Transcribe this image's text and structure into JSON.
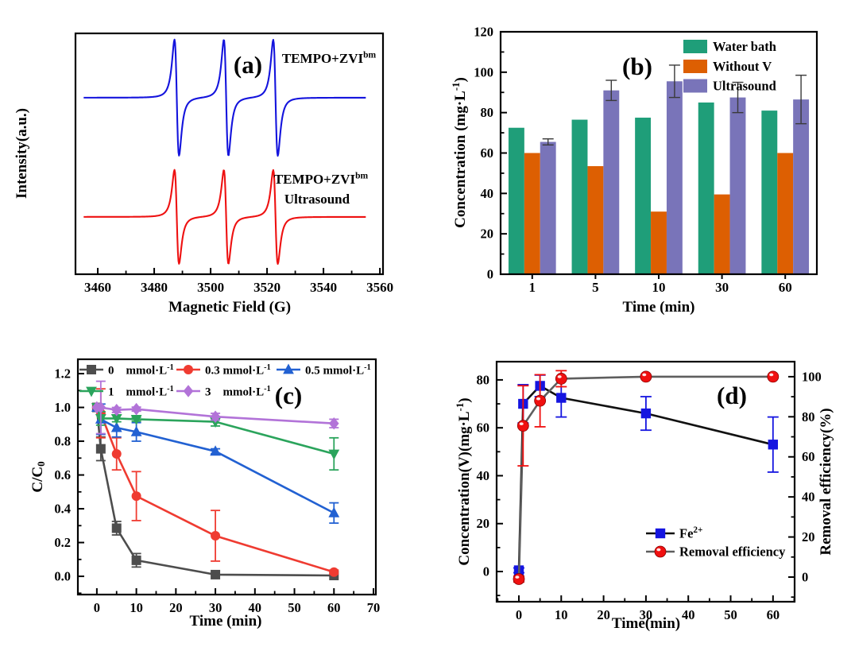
{
  "figure": {
    "background": "#ffffff",
    "panel_labels": [
      "(a)",
      "(b)",
      "(c)",
      "(d)"
    ]
  },
  "chart_data": [
    {
      "panel": "(a)",
      "type": "line",
      "subtype": "epr_spectra",
      "xlabel": "Magnetic Field (G)",
      "ylabel": "Intensity(a.u.)",
      "x_ticks": [
        "3460",
        "3480",
        "3500",
        "3520",
        "3540",
        "3560"
      ],
      "x_tick_values": [
        3460,
        3480,
        3500,
        3520,
        3540,
        3560
      ],
      "x_minor_step": 10,
      "xlim": [
        3452.1,
        3561.1
      ],
      "grid": false,
      "annotations": [
        "TEMPO+ZVI^{bm}",
        "TEMPO+ZVI^{bm}",
        "Ultrasound"
      ],
      "series": [
        {
          "name": "TEMPO+ZVI^{bm}",
          "color": "#1414dd",
          "baseline": 0.733,
          "amplitude": 0.241,
          "peak_centers_G": [
            3488,
            3505.5,
            3523
          ],
          "linewidth_G": 1.4,
          "x_start": 3455,
          "x_end": 3555
        },
        {
          "name": "TEMPO+ZVI^{bm} Ultrasound",
          "color": "#ee1111",
          "baseline": 0.238,
          "amplitude": 0.195,
          "peak_centers_G": [
            3488,
            3505.5,
            3523
          ],
          "linewidth_G": 1.4,
          "x_start": 3455,
          "x_end": 3555
        }
      ]
    },
    {
      "panel": "(b)",
      "type": "bar",
      "xlabel": "Time (min)",
      "ylabel": "Concentration (mg·L^{-1})",
      "categories": [
        "1",
        "5",
        "10",
        "30",
        "60"
      ],
      "y_ticks": [
        "0",
        "20",
        "40",
        "60",
        "80",
        "100",
        "120"
      ],
      "y_tick_values": [
        0,
        20,
        40,
        60,
        80,
        100,
        120
      ],
      "y_minor_step": 10,
      "ylim": [
        0,
        120
      ],
      "legend_position": "top-right-inside",
      "error_bar_color": "#3a3a3a",
      "series": [
        {
          "name": "Water bath",
          "color": "#1f9e79",
          "values": [
            72.5,
            76.5,
            77.5,
            85,
            81
          ]
        },
        {
          "name": "Without V",
          "color": "#dd5f02",
          "values": [
            60,
            53.5,
            31,
            39.5,
            60
          ]
        },
        {
          "name": "Ultrasound",
          "color": "#7974b9",
          "values": [
            65.5,
            91,
            95.5,
            87.5,
            86.5
          ],
          "errors": [
            1.5,
            5,
            8,
            7.5,
            12
          ]
        }
      ]
    },
    {
      "panel": "(c)",
      "type": "line",
      "xlabel": "Time (min)",
      "ylabel": "C/C_{0}",
      "x": [
        0,
        1,
        5,
        10,
        30,
        60
      ],
      "x_ticks": [
        "0",
        "10",
        "20",
        "30",
        "40",
        "50",
        "60",
        "70"
      ],
      "x_tick_values": [
        0,
        10,
        20,
        30,
        40,
        50,
        60,
        70
      ],
      "x_minor_step": 5,
      "y_ticks": [
        "0.0",
        "0.2",
        "0.4",
        "0.6",
        "0.8",
        "1.0",
        "1.2"
      ],
      "y_tick_values": [
        0,
        0.2,
        0.4,
        0.6,
        0.8,
        1.0,
        1.2
      ],
      "y_minor_step": 0.1,
      "xlim": [
        -4.8,
        70.6
      ],
      "ylim": [
        -0.108,
        1.285
      ],
      "legend_position": "top-inside-two-rows",
      "series": [
        {
          "name": "0  mmol·L^{-1}",
          "marker": "square",
          "color": "#4d4d4d",
          "values": [
            1.0,
            0.755,
            0.285,
            0.095,
            0.01,
            0.005
          ],
          "errors": [
            0,
            0.07,
            0.04,
            0.04,
            0,
            0
          ]
        },
        {
          "name": "0.3 mmol·L^{-1}",
          "marker": "circle",
          "color": "#ef3b31",
          "values": [
            1.0,
            0.965,
            0.725,
            0.475,
            0.24,
            0.025
          ],
          "errors": [
            0,
            0.145,
            0.095,
            0.145,
            0.15,
            0.012
          ]
        },
        {
          "name": "0.5 mmol·L^{-1}",
          "marker": "tri-up",
          "color": "#2261d2",
          "values": [
            1.0,
            0.93,
            0.88,
            0.855,
            0.74,
            0.375
          ],
          "errors": [
            0,
            0.09,
            0.055,
            0.055,
            0.015,
            0.06
          ]
        },
        {
          "name": "1  mmol·L^{-1}",
          "marker": "tri-down",
          "color": "#2ba45c",
          "values": [
            1.0,
            0.935,
            0.935,
            0.93,
            0.915,
            0.725
          ],
          "errors": [
            0,
            0.04,
            0.02,
            0.012,
            0.025,
            0.095
          ]
        },
        {
          "name": "3  mmol·L^{-1}",
          "marker": "diamond",
          "color": "#b273d8",
          "values": [
            1.0,
            1.0,
            0.985,
            0.99,
            0.945,
            0.905
          ],
          "errors": [
            0,
            0.155,
            0.015,
            0.012,
            0.02,
            0.025
          ]
        }
      ]
    },
    {
      "panel": "(d)",
      "type": "line-dual-axis",
      "xlabel": "Time(min)",
      "ylabel_left": "Concentration(V)(mg·L^{-1})",
      "ylabel_right": "Removal efficiency(%)",
      "x": [
        0,
        1,
        5,
        10,
        30,
        60
      ],
      "x_ticks": [
        "0",
        "10",
        "20",
        "30",
        "40",
        "50",
        "60"
      ],
      "x_tick_values": [
        0,
        10,
        20,
        30,
        40,
        50,
        60
      ],
      "x_minor_step": 5,
      "y_ticks_left": [
        "0",
        "20",
        "40",
        "60",
        "80"
      ],
      "y_tick_values_left": [
        0,
        20,
        40,
        60,
        80
      ],
      "y_minor_step_left": 10,
      "y_ticks_right": [
        "0",
        "20",
        "40",
        "60",
        "80",
        "100"
      ],
      "y_tick_values_right": [
        0,
        20,
        40,
        60,
        80,
        100
      ],
      "y_minor_step_right": 10,
      "xlim": [
        -5.25,
        65.1
      ],
      "ylim_left": [
        -12.6,
        87.6
      ],
      "ylim_right": [
        -12.3,
        107.5
      ],
      "legend_position": "center-right-inside",
      "series": [
        {
          "name": "Fe^{2+}",
          "axis": "left",
          "marker": "square",
          "marker_color": "#1515e0",
          "line_color": "#111111",
          "values": [
            0.5,
            70,
            77.5,
            72.5,
            66,
            53
          ],
          "errors": [
            1,
            8,
            4.5,
            8,
            7,
            11.5
          ]
        },
        {
          "name": "Removal efficiency",
          "axis": "right",
          "marker": "ball",
          "marker_color": "#f01010",
          "line_color": "#5e5e5e",
          "values": [
            -1,
            75.5,
            88,
            99,
            100,
            100
          ],
          "errors": [
            1.5,
            20,
            13,
            4,
            0,
            0
          ]
        }
      ]
    }
  ]
}
